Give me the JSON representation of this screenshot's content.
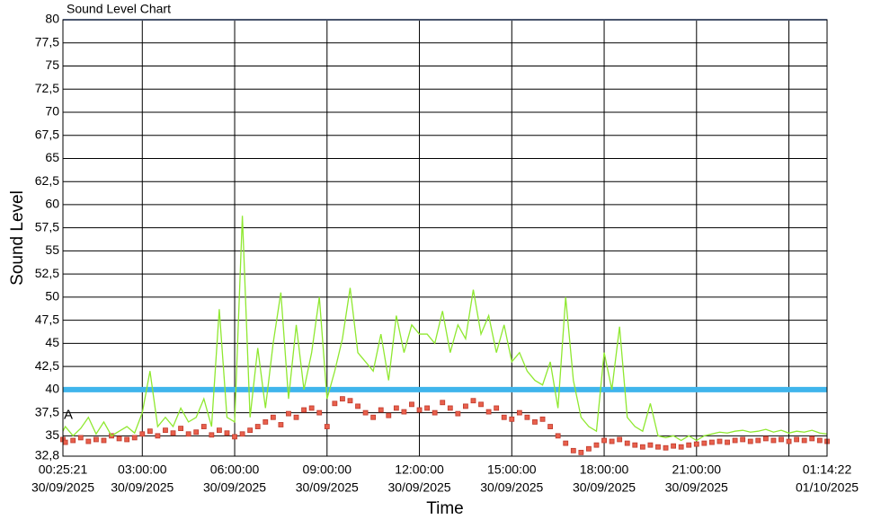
{
  "chart_data": {
    "type": "line",
    "title": "Sound Level Chart",
    "y_label": "Sound Level",
    "x_label": "Time",
    "annotation": "A",
    "x": [
      "2025-09-30T00:25:21",
      "2025-09-30T00:30:00",
      "2025-09-30T00:45:00",
      "2025-09-30T01:00:00",
      "2025-09-30T01:15:00",
      "2025-09-30T01:30:00",
      "2025-09-30T01:45:00",
      "2025-09-30T02:00:00",
      "2025-09-30T02:15:00",
      "2025-09-30T02:30:00",
      "2025-09-30T02:45:00",
      "2025-09-30T03:00:00",
      "2025-09-30T03:15:00",
      "2025-09-30T03:30:00",
      "2025-09-30T03:45:00",
      "2025-09-30T04:00:00",
      "2025-09-30T04:15:00",
      "2025-09-30T04:30:00",
      "2025-09-30T04:45:00",
      "2025-09-30T05:00:00",
      "2025-09-30T05:15:00",
      "2025-09-30T05:30:00",
      "2025-09-30T05:45:00",
      "2025-09-30T06:00:00",
      "2025-09-30T06:15:00",
      "2025-09-30T06:30:00",
      "2025-09-30T06:45:00",
      "2025-09-30T07:00:00",
      "2025-09-30T07:15:00",
      "2025-09-30T07:30:00",
      "2025-09-30T07:45:00",
      "2025-09-30T08:00:00",
      "2025-09-30T08:15:00",
      "2025-09-30T08:30:00",
      "2025-09-30T08:45:00",
      "2025-09-30T09:00:00",
      "2025-09-30T09:15:00",
      "2025-09-30T09:30:00",
      "2025-09-30T09:45:00",
      "2025-09-30T10:00:00",
      "2025-09-30T10:15:00",
      "2025-09-30T10:30:00",
      "2025-09-30T10:45:00",
      "2025-09-30T11:00:00",
      "2025-09-30T11:15:00",
      "2025-09-30T11:30:00",
      "2025-09-30T11:45:00",
      "2025-09-30T12:00:00",
      "2025-09-30T12:15:00",
      "2025-09-30T12:30:00",
      "2025-09-30T12:45:00",
      "2025-09-30T13:00:00",
      "2025-09-30T13:15:00",
      "2025-09-30T13:30:00",
      "2025-09-30T13:45:00",
      "2025-09-30T14:00:00",
      "2025-09-30T14:15:00",
      "2025-09-30T14:30:00",
      "2025-09-30T14:45:00",
      "2025-09-30T15:00:00",
      "2025-09-30T15:15:00",
      "2025-09-30T15:30:00",
      "2025-09-30T15:45:00",
      "2025-09-30T16:00:00",
      "2025-09-30T16:15:00",
      "2025-09-30T16:30:00",
      "2025-09-30T16:45:00",
      "2025-09-30T17:00:00",
      "2025-09-30T17:15:00",
      "2025-09-30T17:30:00",
      "2025-09-30T17:45:00",
      "2025-09-30T18:00:00",
      "2025-09-30T18:15:00",
      "2025-09-30T18:30:00",
      "2025-09-30T18:45:00",
      "2025-09-30T19:00:00",
      "2025-09-30T19:15:00",
      "2025-09-30T19:30:00",
      "2025-09-30T19:45:00",
      "2025-09-30T20:00:00",
      "2025-09-30T20:15:00",
      "2025-09-30T20:30:00",
      "2025-09-30T20:45:00",
      "2025-09-30T21:00:00",
      "2025-09-30T21:15:00",
      "2025-09-30T21:30:00",
      "2025-09-30T21:45:00",
      "2025-09-30T22:00:00",
      "2025-09-30T22:15:00",
      "2025-09-30T22:30:00",
      "2025-09-30T22:45:00",
      "2025-09-30T23:00:00",
      "2025-09-30T23:15:00",
      "2025-09-30T23:30:00",
      "2025-09-30T23:45:00",
      "2025-10-01T00:00:00",
      "2025-10-01T00:15:00",
      "2025-10-01T00:30:00",
      "2025-10-01T00:45:00",
      "2025-10-01T01:00:00",
      "2025-10-01T01:14:22"
    ],
    "series": [
      {
        "color": "#8fe830",
        "marker": "none",
        "values": [
          35.5,
          36,
          35,
          35.8,
          37,
          35.2,
          36.5,
          35,
          35.5,
          36,
          35.3,
          37.5,
          42,
          36,
          37,
          36,
          38,
          36.5,
          37,
          39,
          36,
          48.7,
          37,
          36.5,
          58.8,
          37,
          44.5,
          38,
          45,
          50.5,
          39,
          47,
          40,
          44,
          50,
          39,
          42,
          45.5,
          51,
          44,
          43,
          42,
          46,
          41,
          48,
          44,
          47,
          46,
          46,
          45,
          48.5,
          44,
          47,
          45.5,
          50.8,
          46,
          48,
          44,
          47,
          43,
          44,
          42,
          41,
          40.5,
          43,
          38,
          50,
          41,
          37,
          36,
          35.5,
          44,
          40,
          46.8,
          37,
          36,
          35.5,
          38.5,
          35,
          34.8,
          35,
          34.5,
          35,
          34.5,
          35,
          35.2,
          35.4,
          35.3,
          35.5,
          35.6,
          35.4,
          35.5,
          35.7,
          35.4,
          35.6,
          35.3,
          35.5,
          35.4,
          35.6,
          35.3,
          35.2
        ]
      },
      {
        "color": "#e8604c",
        "marker": "square",
        "values": [
          34.6,
          34.3,
          34.5,
          34.8,
          34.4,
          34.6,
          34.5,
          35,
          34.7,
          34.6,
          34.8,
          35.2,
          35.5,
          35,
          35.6,
          35.3,
          35.8,
          35.2,
          35.4,
          36,
          35.1,
          35.6,
          35.3,
          34.9,
          35.2,
          35.6,
          36,
          36.5,
          37,
          36.2,
          37.4,
          37,
          37.8,
          38,
          37.5,
          36,
          38.5,
          39,
          38.8,
          38.2,
          37.5,
          37,
          37.8,
          37.2,
          38,
          37.6,
          38.4,
          37.8,
          38,
          37.5,
          38.6,
          38,
          37.4,
          38.2,
          38.8,
          38.4,
          37.6,
          38,
          37,
          36.8,
          37.5,
          37,
          36.5,
          36.8,
          36,
          35,
          34.2,
          33.4,
          33.2,
          33.6,
          34,
          34.5,
          34.4,
          34.6,
          34.2,
          34,
          33.8,
          34,
          33.8,
          33.7,
          33.9,
          33.8,
          34,
          34.1,
          34.2,
          34.3,
          34.4,
          34.3,
          34.5,
          34.6,
          34.4,
          34.5,
          34.7,
          34.5,
          34.6,
          34.4,
          34.6,
          34.5,
          34.7,
          34.5,
          34.4
        ]
      }
    ],
    "threshold": {
      "value": 40,
      "color": "#3fb5ec"
    },
    "ylim": [
      32.8,
      80
    ],
    "yticks": [
      {
        "value": 32.8,
        "label": "32,8"
      },
      35,
      {
        "value": 37.5,
        "label": "37,5"
      },
      40,
      {
        "value": 42.5,
        "label": "42,5"
      },
      45,
      {
        "value": 47.5,
        "label": "47,5"
      },
      50,
      {
        "value": 52.5,
        "label": "52,5"
      },
      55,
      {
        "value": 57.5,
        "label": "57,5"
      },
      60,
      {
        "value": 62.5,
        "label": "62,5"
      },
      65,
      {
        "value": 67.5,
        "label": "67,5"
      },
      70,
      {
        "value": 72.5,
        "label": "72,5"
      },
      75,
      {
        "value": 77.5,
        "label": "77,5"
      },
      80
    ],
    "xlim": [
      "2025-09-30T00:25:21",
      "2025-10-01T01:14:22"
    ],
    "xticks": [
      {
        "value": "2025-09-30T00:25:21",
        "label": [
          "00:25:21",
          "30/09/2025"
        ]
      },
      {
        "value": "2025-09-30T03:00:00",
        "label": [
          "03:00:00",
          "30/09/2025"
        ]
      },
      {
        "value": "2025-09-30T06:00:00",
        "label": [
          "06:00:00",
          "30/09/2025"
        ]
      },
      {
        "value": "2025-09-30T09:00:00",
        "label": [
          "09:00:00",
          "30/09/2025"
        ]
      },
      {
        "value": "2025-09-30T12:00:00",
        "label": [
          "12:00:00",
          "30/09/2025"
        ]
      },
      {
        "value": "2025-09-30T15:00:00",
        "label": [
          "15:00:00",
          "30/09/2025"
        ]
      },
      {
        "value": "2025-09-30T18:00:00",
        "label": [
          "18:00:00",
          "30/09/2025"
        ]
      },
      {
        "value": "2025-09-30T21:00:00",
        "label": [
          "21:00:00",
          "30/09/2025"
        ]
      },
      {
        "value": "2025-10-01T00:00:00",
        "label": null
      },
      {
        "value": "2025-10-01T01:14:22",
        "label": [
          "01:14:22",
          "01/10/2025"
        ]
      }
    ],
    "grid": true
  }
}
